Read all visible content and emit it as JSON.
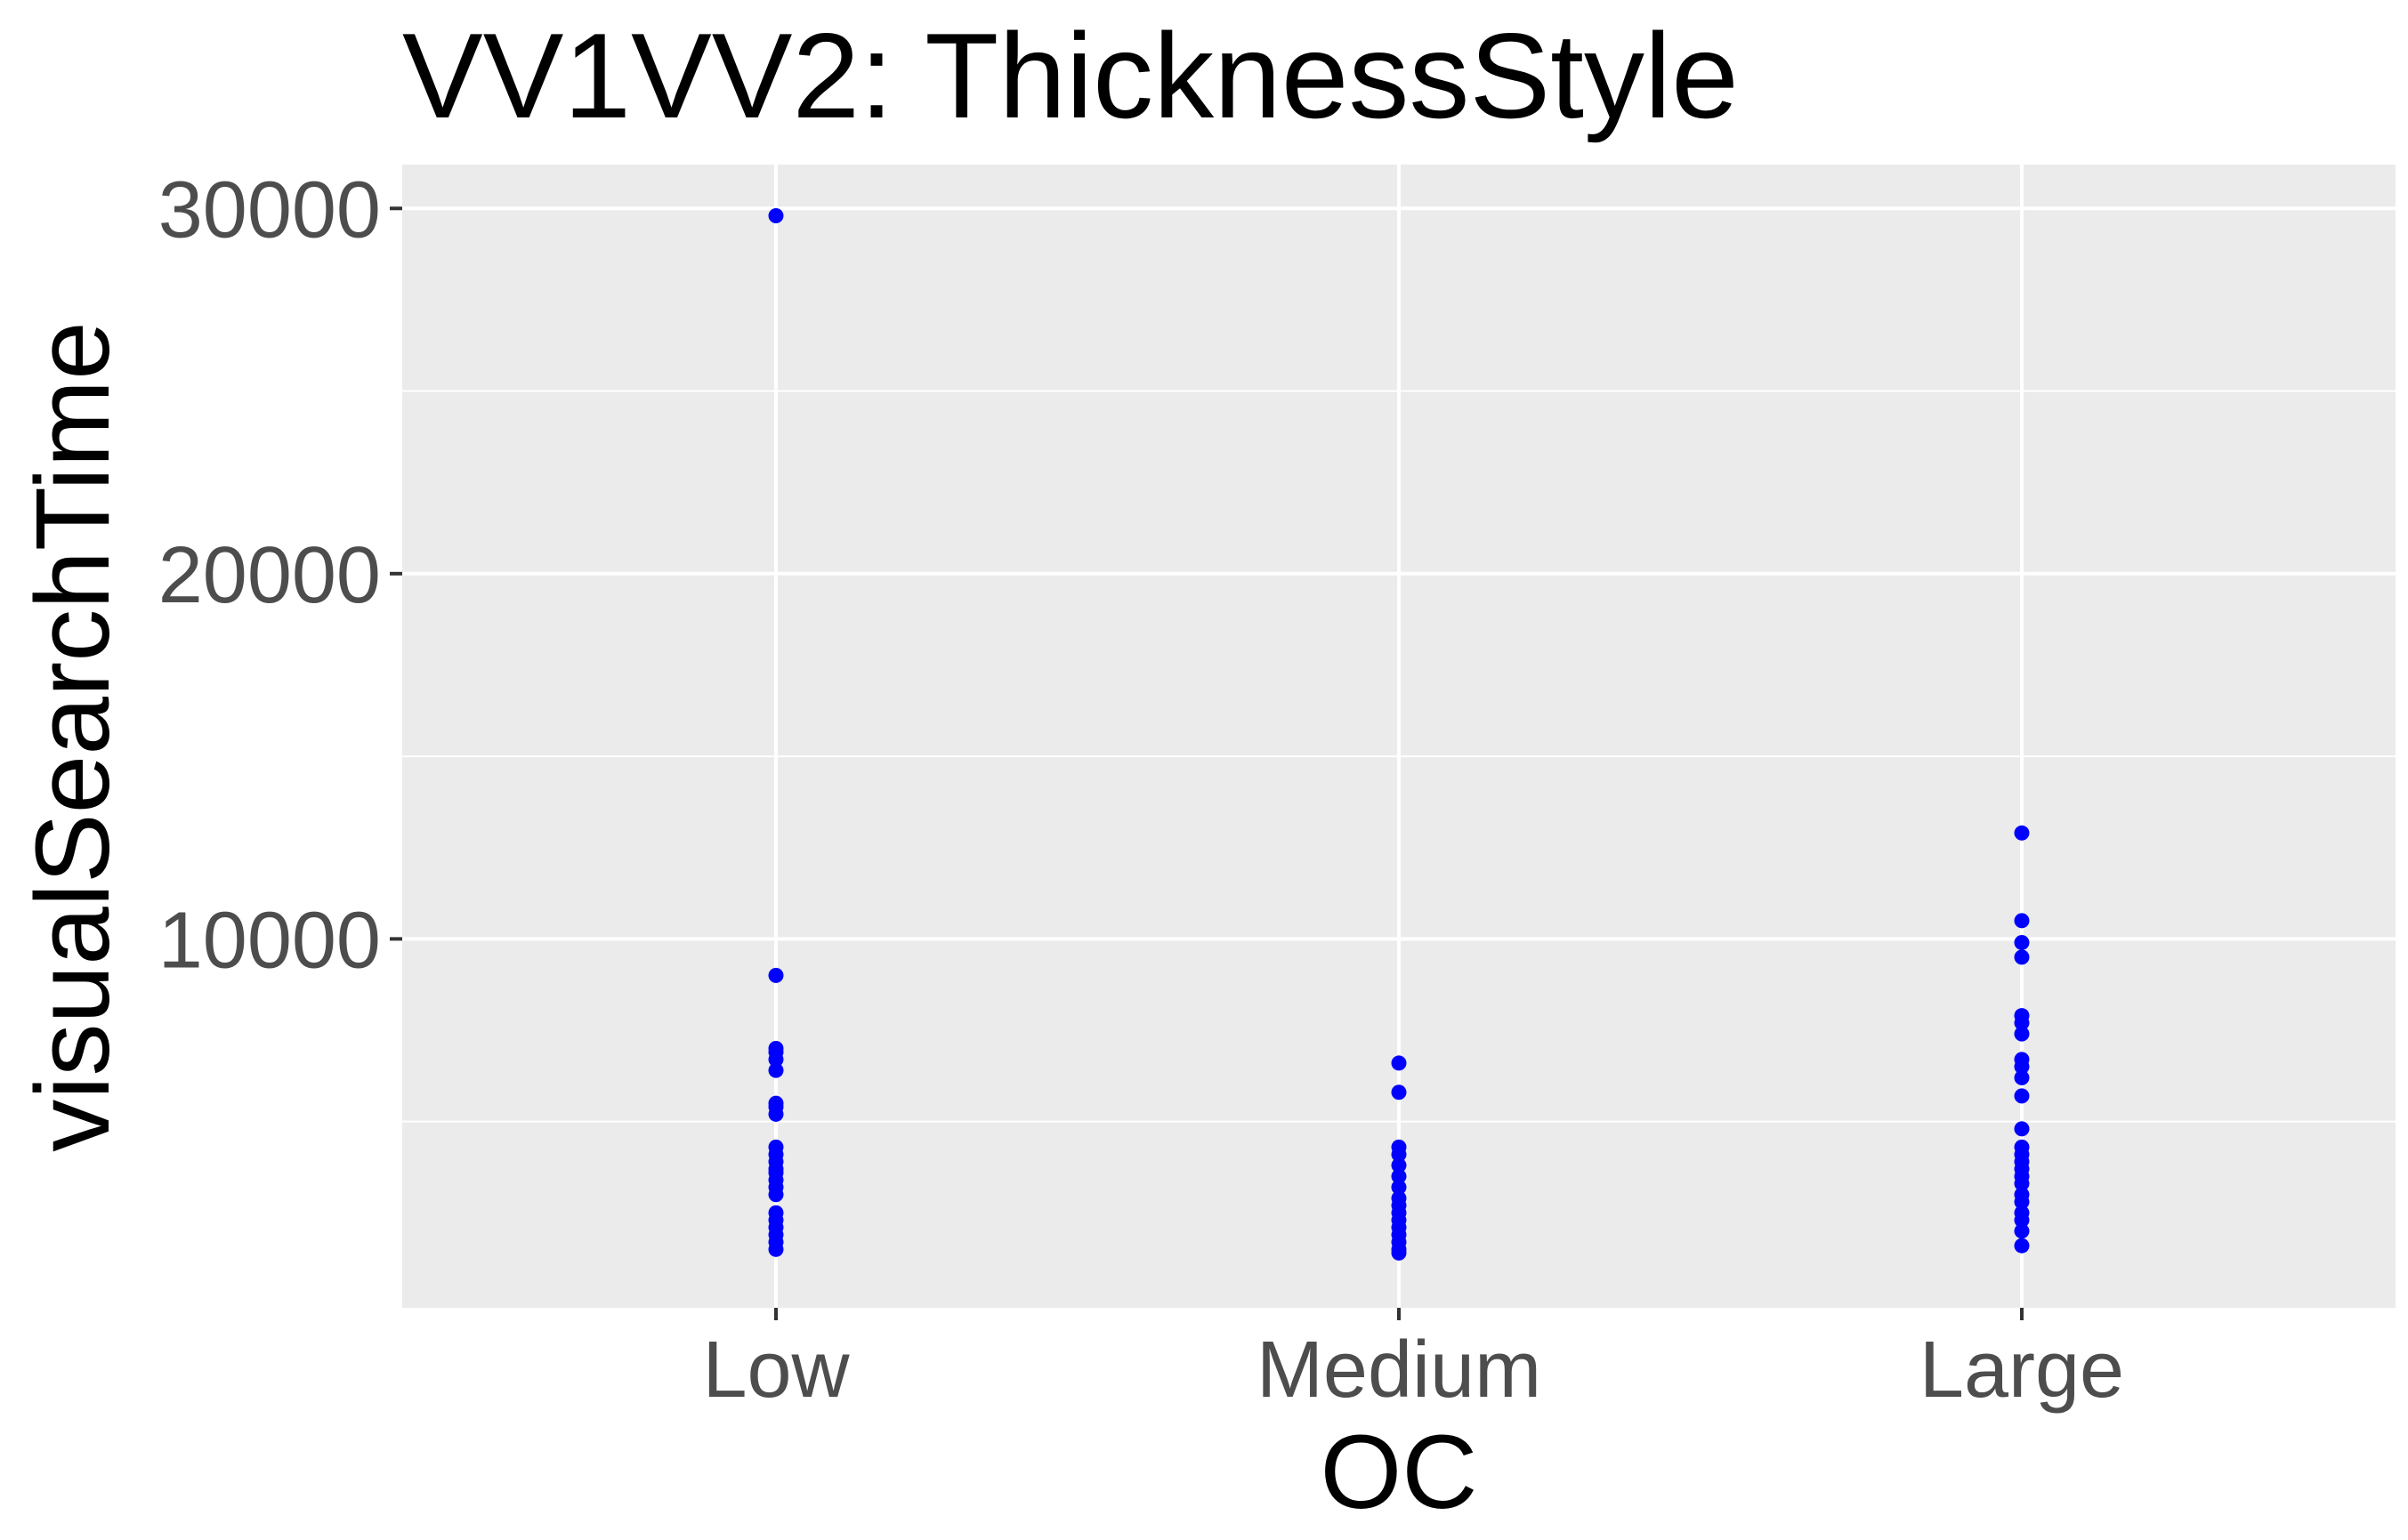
{
  "chart_data": {
    "type": "scatter",
    "title": "VV1VV2: ThicknessStyle",
    "xlabel": "OC",
    "ylabel": "visualSearchTime",
    "categories": [
      "Low",
      "Medium",
      "Large"
    ],
    "ylim": [
      -100,
      31200
    ],
    "yticks": [
      10000,
      20000,
      30000
    ],
    "ytick_labels": [
      "10000",
      "20000",
      "30000"
    ],
    "grid": true,
    "point_color": "#0000ff",
    "panel_color": "#ebebeb",
    "grid_color": "#ffffff",
    "series": [
      {
        "name": "Low",
        "values": [
          29800,
          9000,
          7000,
          6900,
          6700,
          6400,
          5500,
          5400,
          5200,
          4300,
          4100,
          3900,
          3700,
          3600,
          3400,
          3200,
          3000,
          2500,
          2300,
          2100,
          1900,
          1700,
          1500
        ]
      },
      {
        "name": "Medium",
        "values": [
          6600,
          5800,
          4300,
          4100,
          3800,
          3500,
          3200,
          2900,
          2700,
          2500,
          2300,
          2100,
          1900,
          1700,
          1500,
          1400
        ]
      },
      {
        "name": "Large",
        "values": [
          12900,
          10500,
          9900,
          9500,
          7900,
          7700,
          7400,
          6700,
          6500,
          6200,
          5700,
          4800,
          4300,
          4100,
          3900,
          3700,
          3500,
          3300,
          3000,
          2800,
          2500,
          2300,
          2000,
          1600
        ]
      }
    ]
  }
}
